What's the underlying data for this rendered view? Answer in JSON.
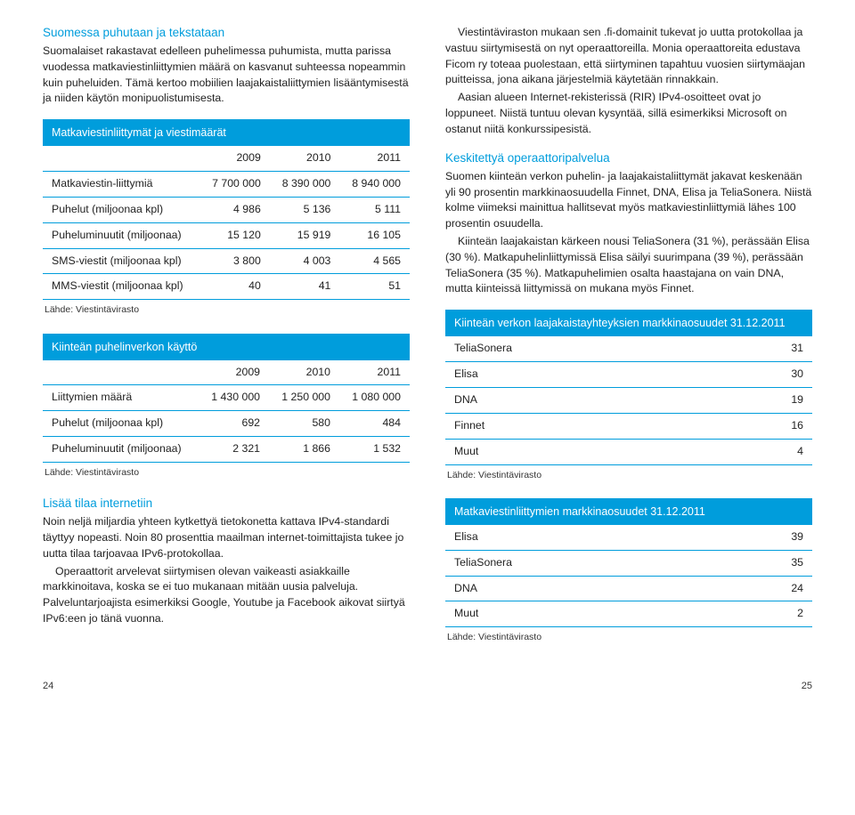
{
  "left": {
    "heading1": "Suomessa puhutaan ja tekstataan",
    "p1": "Suomalaiset rakastavat edelleen puhelimessa puhumista, mutta parissa vuodessa matkaviestinliittymien määrä on kasvanut suhteessa nopeammin kuin puheluiden. Tämä kertoo mobiilien laajakaistaliittymien lisääntymisestä ja niiden käytön monipuolistumisesta.",
    "table1": {
      "title": "Matkaviestinliittymät ja viestimäärät",
      "years": [
        "2009",
        "2010",
        "2011"
      ],
      "rows": [
        {
          "label": "Matkaviestin-liittymiä",
          "v": [
            "7 700 000",
            "8 390 000",
            "8 940 000"
          ]
        },
        {
          "label": "Puhelut (miljoonaa kpl)",
          "v": [
            "4 986",
            "5 136",
            "5 111"
          ]
        },
        {
          "label": "Puheluminuutit (miljoonaa)",
          "v": [
            "15 120",
            "15 919",
            "16 105"
          ]
        },
        {
          "label": "SMS-viestit (miljoonaa kpl)",
          "v": [
            "3 800",
            "4 003",
            "4 565"
          ]
        },
        {
          "label": "MMS-viestit (miljoonaa kpl)",
          "v": [
            "40",
            "41",
            "51"
          ]
        }
      ],
      "source": "Lähde: Viestintävirasto"
    },
    "table2": {
      "title": "Kiinteän puhelinverkon käyttö",
      "years": [
        "2009",
        "2010",
        "2011"
      ],
      "rows": [
        {
          "label": "Liittymien määrä",
          "v": [
            "1 430 000",
            "1 250 000",
            "1 080 000"
          ]
        },
        {
          "label": "Puhelut (miljoonaa kpl)",
          "v": [
            "692",
            "580",
            "484"
          ]
        },
        {
          "label": "Puheluminuutit (miljoonaa)",
          "v": [
            "2 321",
            "1 866",
            "1 532"
          ]
        }
      ],
      "source": "Lähde: Viestintävirasto"
    },
    "heading2": "Lisää tilaa internetiin",
    "p2a": "Noin neljä miljardia yhteen kytkettyä tietokonetta kattava IPv4-standardi täyttyy nopeasti. Noin 80 prosenttia maailman internet-toimittajista tukee jo uutta tilaa tarjoavaa IPv6-protokollaa.",
    "p2b": "Operaattorit arvelevat siirtymisen olevan vaikeasti asiakkaille markkinoitava, koska se ei tuo mukanaan mitään uusia palveluja. Palveluntarjoajista esimerkiksi Google, Youtube ja Facebook aikovat siirtyä IPv6:een jo tänä vuonna."
  },
  "right": {
    "p1a": "Viestintäviraston mukaan sen .fi-domainit tukevat jo uutta protokollaa ja vastuu siirtymisestä on nyt operaattoreilla. Monia operaattoreita edustava Ficom ry toteaa puolestaan, että siirtyminen tapahtuu vuosien siirtymäajan puitteissa, jona aikana järjestelmiä käytetään rinnakkain.",
    "p1b": "Aasian alueen Internet-rekisterissä (RIR) IPv4-osoitteet ovat jo loppuneet. Niistä tuntuu olevan kysyntää, sillä esimerkiksi Microsoft on ostanut niitä konkurssipesistä.",
    "heading2": "Keskitettyä operaattoripalvelua",
    "p2a": "Suomen kiinteän verkon puhelin- ja laajakaistaliittymät jakavat keskenään yli 90 prosentin markkinaosuudella Finnet, DNA, Elisa ja TeliaSonera. Niistä kolme viimeksi mainittua hallitsevat myös matkaviestinliittymiä lähes 100 prosentin osuudella.",
    "p2b": "Kiinteän laajakaistan kärkeen nousi TeliaSonera (31 %), perässään Elisa (30 %). Matkapuhelinliittymissä Elisa säilyi suurimpana (39 %), perässään TeliaSonera (35 %). Matkapuhelimien osalta haastajana on vain DNA, mutta kiinteissä liittymissä on mukana myös Finnet.",
    "table3": {
      "title": "Kiinteän verkon laajakaistayhteyksien markkinaosuudet 31.12.2011",
      "rows": [
        {
          "label": "TeliaSonera",
          "v": "31"
        },
        {
          "label": "Elisa",
          "v": "30"
        },
        {
          "label": "DNA",
          "v": "19"
        },
        {
          "label": "Finnet",
          "v": "16"
        },
        {
          "label": "Muut",
          "v": "4"
        }
      ],
      "source": "Lähde: Viestintävirasto"
    },
    "table4": {
      "title": "Matkaviestinliittymien markkinaosuudet 31.12.2011",
      "rows": [
        {
          "label": "Elisa",
          "v": "39"
        },
        {
          "label": "TeliaSonera",
          "v": "35"
        },
        {
          "label": "DNA",
          "v": "24"
        },
        {
          "label": "Muut",
          "v": "2"
        }
      ],
      "source": "Lähde: Viestintävirasto"
    }
  },
  "pageLeft": "24",
  "pageRight": "25"
}
